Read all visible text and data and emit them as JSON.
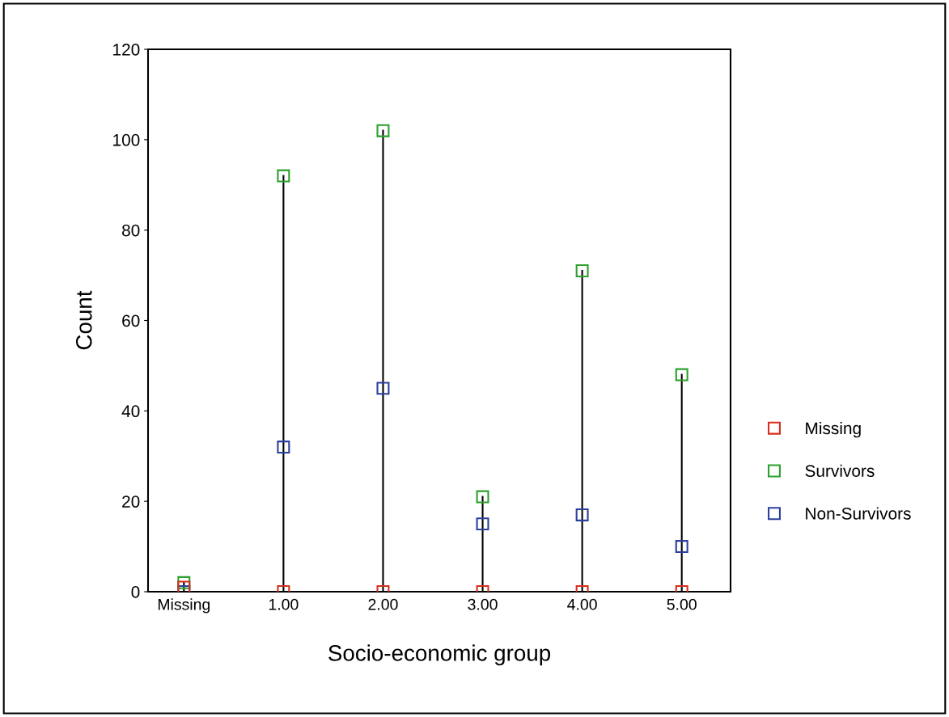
{
  "chart_data": {
    "type": "scatter",
    "xlabel": "Socio-economic group",
    "ylabel": "Count",
    "categories": [
      "Missing",
      "1.00",
      "2.00",
      "3.00",
      "4.00",
      "5.00"
    ],
    "series": [
      {
        "name": "Missing",
        "color": "#d62f1f",
        "values": [
          1,
          0,
          0,
          0,
          0,
          0
        ]
      },
      {
        "name": "Survivors",
        "color": "#2ca02c",
        "values": [
          2,
          92,
          102,
          21,
          71,
          48
        ]
      },
      {
        "name": "Non-Survivors",
        "color": "#2a3f9e",
        "values": [
          0,
          32,
          45,
          15,
          17,
          10
        ]
      }
    ],
    "ylim": [
      0,
      120
    ],
    "yticks": [
      0,
      20,
      40,
      60,
      80,
      100,
      120
    ],
    "legend": "right",
    "marker": "square"
  }
}
